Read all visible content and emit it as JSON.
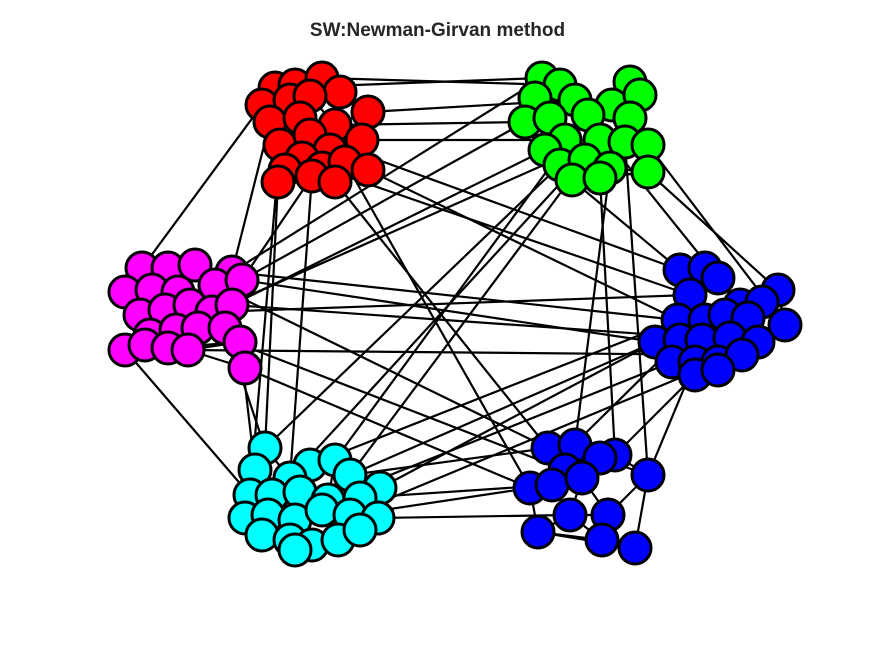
{
  "title": "SW:Newman-Girvan method",
  "communities": [
    {
      "name": "red",
      "color": "#ff0000"
    },
    {
      "name": "green",
      "color": "#00ff00"
    },
    {
      "name": "magenta",
      "color": "#ff00ff"
    },
    {
      "name": "blue-right",
      "color": "#0000ff"
    },
    {
      "name": "cyan",
      "color": "#00ffff"
    },
    {
      "name": "blue-bottom",
      "color": "#0000ff"
    }
  ],
  "edge_color": "#000000",
  "node_stroke": "#000000"
}
